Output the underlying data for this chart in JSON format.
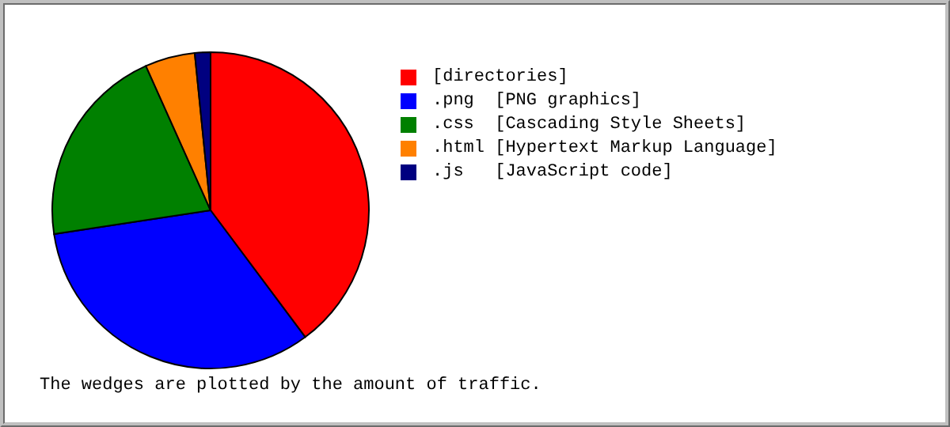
{
  "chart_data": {
    "type": "pie",
    "categories": [
      "[directories]",
      ".png  [PNG graphics]",
      ".css  [Cascading Style Sheets]",
      ".html [Hypertext Markup Language]",
      ".js   [JavaScript code]"
    ],
    "values": [
      39.8,
      32.8,
      20.7,
      5.1,
      1.6
    ],
    "colors": [
      "#ff0000",
      "#0000ff",
      "#008000",
      "#ff8000",
      "#000080"
    ],
    "legend": "right",
    "annotations": [
      "The wedges are plotted by the amount of traffic."
    ]
  }
}
